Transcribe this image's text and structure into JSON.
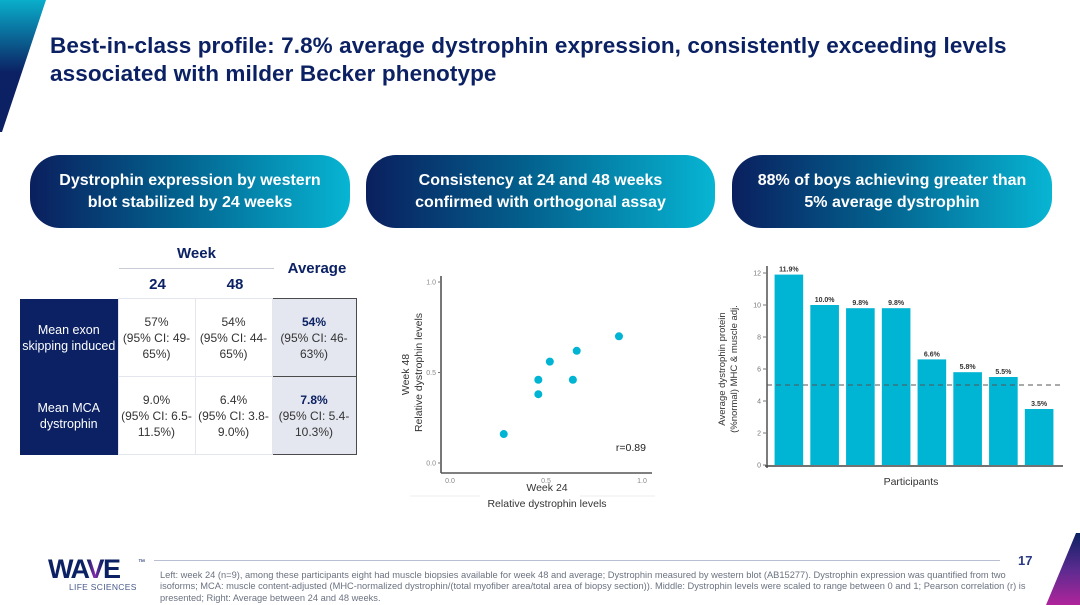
{
  "title": "Best-in-class profile: 7.8% average dystrophin expression, consistently exceeding levels associated with milder Becker phenotype",
  "pills": [
    "Dystrophin expression by western blot stabilized by 24 weeks",
    "Consistency at 24 and 48 weeks confirmed with orthogonal assay",
    "88% of boys achieving greater than 5% average dystrophin"
  ],
  "table": {
    "week_header": "Week",
    "columns": [
      "24",
      "48",
      "Average"
    ],
    "rows": [
      {
        "label": "Mean exon skipping induced",
        "cells": [
          {
            "value": "57%",
            "ci": "(95% CI: 49-65%)"
          },
          {
            "value": "54%",
            "ci": "(95% CI: 44-65%)"
          },
          {
            "value": "54%",
            "ci": "(95% CI: 46-63%)"
          }
        ]
      },
      {
        "label": "Mean MCA dystrophin",
        "cells": [
          {
            "value": "9.0%",
            "ci": "(95% CI: 6.5-11.5%)"
          },
          {
            "value": "6.4%",
            "ci": "(95% CI: 3.8-9.0%)"
          },
          {
            "value": "7.8%",
            "ci": "(95% CI: 5.4-10.3%)"
          }
        ]
      }
    ]
  },
  "chart_data": [
    {
      "type": "scatter",
      "title": "",
      "xlabel": "Week 24\nRelative dystrophin levels",
      "ylabel": "Week 48\nRelative dystrophin levels",
      "xlim": [
        0,
        1
      ],
      "ylim": [
        0,
        1
      ],
      "xticks": [
        "0.0",
        "0.5",
        "1.0"
      ],
      "yticks": [
        "0.0",
        "0.5",
        "1.0"
      ],
      "points": [
        {
          "x": 0.28,
          "y": 0.16
        },
        {
          "x": 0.46,
          "y": 0.38
        },
        {
          "x": 0.46,
          "y": 0.46
        },
        {
          "x": 0.52,
          "y": 0.56
        },
        {
          "x": 0.64,
          "y": 0.46
        },
        {
          "x": 0.66,
          "y": 0.62
        },
        {
          "x": 0.88,
          "y": 0.7
        }
      ],
      "annotation": "r=0.89",
      "color": "#00b4d4",
      "grid": false
    },
    {
      "type": "bar",
      "title": "",
      "xlabel": "Participants",
      "ylabel": "Average dystrophin protein\n(%normal) MHC & muscle adj.",
      "ylim": [
        0,
        12
      ],
      "yticks": [
        "0",
        "2",
        "4",
        "6",
        "8",
        "10",
        "12"
      ],
      "values": [
        11.9,
        10.0,
        9.8,
        9.8,
        6.6,
        5.8,
        5.5,
        3.5
      ],
      "labels": [
        "11.9%",
        "10.0%",
        "9.8%",
        "9.8%",
        "6.6%",
        "5.8%",
        "5.5%",
        "3.5%"
      ],
      "reference_line": 5,
      "color": "#00b4d4",
      "grid": false
    }
  ],
  "footer": {
    "logo": "WAVE",
    "logo_tm": "™",
    "logo_sub": "LIFE SCIENCES",
    "footnote": "Left: week 24 (n=9), among these participants eight had muscle biopsies available for week 48 and average; Dystrophin measured by western blot (AB15277). Dystrophin expression was quantified from two isoforms; MCA: muscle content-adjusted (MHC-normalized dystrophin/(total myofiber area/total area of biopsy section)). Middle: Dystrophin levels were scaled to range between 0 and 1; Pearson correlation (r) is presented; Right: Average between 24 and 48 weeks.",
    "page_number": "17"
  }
}
